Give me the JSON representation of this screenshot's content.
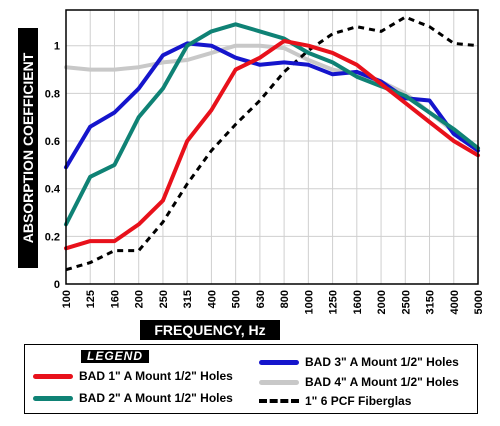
{
  "chart_data": {
    "type": "line",
    "title": "",
    "xlabel": "FREQUENCY, Hz",
    "ylabel": "ABSORPTION COEFFICIENT",
    "x_scale": "log",
    "categories": [
      "100",
      "125",
      "160",
      "200",
      "250",
      "315",
      "400",
      "500",
      "630",
      "800",
      "1000",
      "1250",
      "1600",
      "2000",
      "2500",
      "3150",
      "4000",
      "5000"
    ],
    "ylim": [
      0,
      1.15
    ],
    "yticks": [
      "0",
      "0.2",
      "0.4",
      "0.6",
      "0.8",
      "1"
    ],
    "grid": true,
    "legend_title": "LEGEND",
    "legend_position": "bottom",
    "series": [
      {
        "name": "BAD 1\" A Mount 1/2\" Holes",
        "color": "#e8111b",
        "style": "solid",
        "values": [
          0.15,
          0.18,
          0.18,
          0.25,
          0.35,
          0.6,
          0.73,
          0.9,
          0.95,
          1.02,
          1.0,
          0.97,
          0.92,
          0.84,
          0.76,
          0.68,
          0.6,
          0.54
        ]
      },
      {
        "name": "BAD 2\" A Mount 1/2\" Holes",
        "color": "#0f8275",
        "style": "solid",
        "values": [
          0.25,
          0.45,
          0.5,
          0.7,
          0.82,
          1.0,
          1.06,
          1.09,
          1.06,
          1.03,
          0.97,
          0.93,
          0.87,
          0.83,
          0.79,
          0.72,
          0.65,
          0.57
        ]
      },
      {
        "name": "BAD 3\" A Mount 1/2\" Holes",
        "color": "#1515cc",
        "style": "solid",
        "values": [
          0.49,
          0.66,
          0.72,
          0.82,
          0.96,
          1.01,
          1.0,
          0.95,
          0.92,
          0.93,
          0.92,
          0.88,
          0.89,
          0.85,
          0.78,
          0.77,
          0.63,
          0.56
        ]
      },
      {
        "name": "BAD 4\" A Mount 1/2\" Holes",
        "color": "#c8c8c8",
        "style": "solid",
        "values": [
          0.91,
          0.9,
          0.9,
          0.91,
          0.93,
          0.94,
          0.97,
          1.0,
          1.0,
          0.99,
          0.94,
          0.9,
          0.88,
          0.85,
          0.8,
          0.72,
          0.64,
          0.57
        ]
      },
      {
        "name": "1\" 6 PCF Fiberglas",
        "color": "#000000",
        "style": "dashed",
        "values": [
          0.06,
          0.09,
          0.14,
          0.14,
          0.26,
          0.42,
          0.56,
          0.67,
          0.77,
          0.89,
          0.98,
          1.05,
          1.08,
          1.06,
          1.12,
          1.08,
          1.01,
          1.0
        ]
      }
    ]
  }
}
